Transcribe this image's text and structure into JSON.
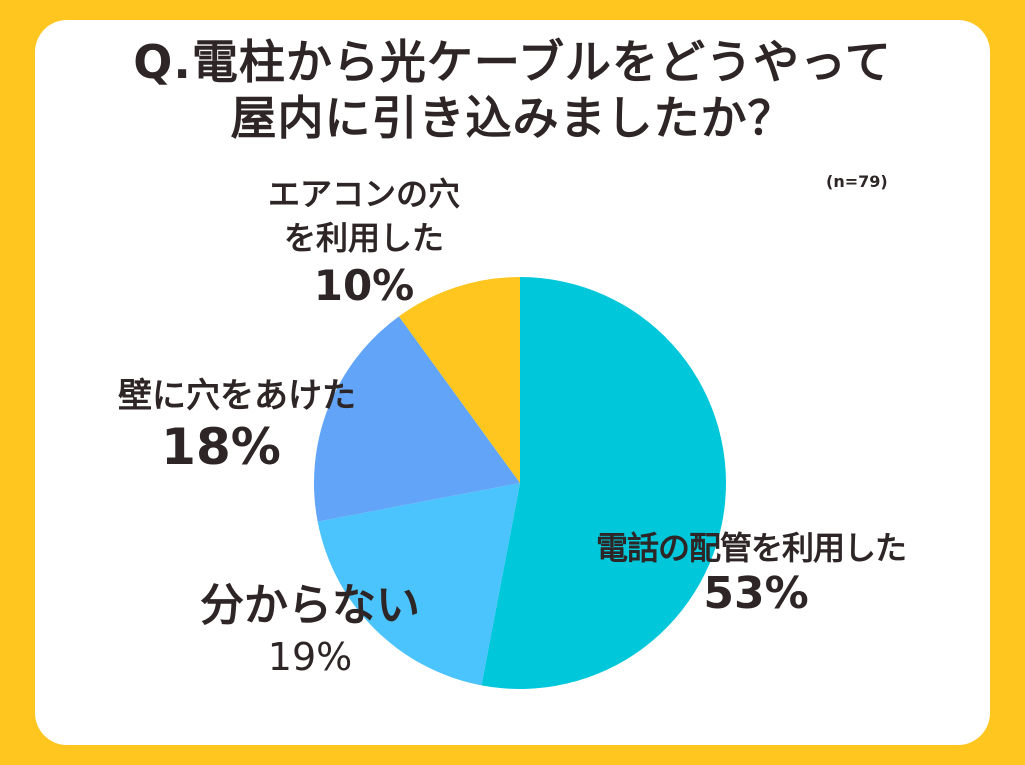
{
  "title": {
    "line1": "Q.電柱から光ケーブルをどうやって",
    "line2": "屋内に引き込みましたか？"
  },
  "sample_size": "(n=79)",
  "colors": {
    "background": "#FEC61E",
    "card": "#FFFFFF",
    "text": "#2E2626"
  },
  "labels": {
    "phone": {
      "name": "電話の配管を利用した",
      "pct": "53%"
    },
    "unknown": {
      "name": "分からない",
      "pct": "19%"
    },
    "wall": {
      "name": "壁に穴をあけた",
      "pct": "18%"
    },
    "aircon": {
      "name1": "エアコンの穴",
      "name2": "を利用した",
      "pct": "10%"
    }
  },
  "chart_data": {
    "type": "pie",
    "title": "Q.電柱から光ケーブルをどうやって屋内に引き込みましたか？",
    "annotation": "(n=79)",
    "start_angle": "12 o'clock, clockwise",
    "categories": [
      "電話の配管を利用した",
      "分からない",
      "壁に穴をあけた",
      "エアコンの穴を利用した"
    ],
    "values": [
      53,
      19,
      18,
      10
    ],
    "unit": "%",
    "colors": [
      "#00C8DA",
      "#4BC3FD",
      "#62A4F8",
      "#FEC61E"
    ],
    "legend": "none (labels placed next to slices)"
  }
}
